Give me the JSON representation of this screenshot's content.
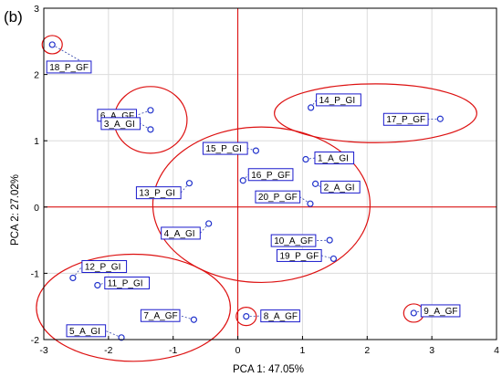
{
  "chart_data": {
    "type": "scatter",
    "panel_label": "(b)",
    "xlabel": "PCA 1: 47.05%",
    "ylabel": "PCA 2: 27.02%",
    "xlim": [
      -3,
      4
    ],
    "ylim": [
      -2,
      3
    ],
    "xticks": [
      -3,
      -2,
      -1,
      0,
      1,
      2,
      3,
      4
    ],
    "yticks": [
      -2,
      -1,
      0,
      1,
      2,
      3
    ],
    "grid": true,
    "reference_lines": {
      "x": 0,
      "y": 0,
      "color": "#dd0000"
    },
    "point_color": "#2233cc",
    "label_box_color": "#1a1acc",
    "ellipse_color": "#dd1111",
    "points": [
      {
        "label": "18_P_GF",
        "x": -2.87,
        "y": 2.45
      },
      {
        "label": "6_A_GF",
        "x": -1.35,
        "y": 1.46
      },
      {
        "label": "3_A_GI",
        "x": -1.35,
        "y": 1.17
      },
      {
        "label": "15_P_GI",
        "x": 0.28,
        "y": 0.85
      },
      {
        "label": "16_P_GF",
        "x": 0.08,
        "y": 0.4
      },
      {
        "label": "13_P_GI",
        "x": -0.75,
        "y": 0.36
      },
      {
        "label": "4_A_GI",
        "x": -0.45,
        "y": -0.25
      },
      {
        "label": "14_P_GI",
        "x": 1.13,
        "y": 1.5
      },
      {
        "label": "17_P_GF",
        "x": 3.13,
        "y": 1.33
      },
      {
        "label": "1_A_GI",
        "x": 1.05,
        "y": 0.72
      },
      {
        "label": "2_A_GI",
        "x": 1.2,
        "y": 0.35
      },
      {
        "label": "20_P_GF",
        "x": 1.12,
        "y": 0.05
      },
      {
        "label": "10_A_GF",
        "x": 1.42,
        "y": -0.5
      },
      {
        "label": "19_P_GF",
        "x": 1.48,
        "y": -0.78
      },
      {
        "label": "12_P_GI",
        "x": -2.55,
        "y": -1.07
      },
      {
        "label": "11_P_GI",
        "x": -2.17,
        "y": -1.18
      },
      {
        "label": "7_A_GF",
        "x": -0.68,
        "y": -1.7
      },
      {
        "label": "8_A_GF",
        "x": 0.13,
        "y": -1.65
      },
      {
        "label": "9_A_GF",
        "x": 2.72,
        "y": -1.6
      },
      {
        "label": "5_A_GI",
        "x": -1.8,
        "y": -1.97
      }
    ],
    "groups": [
      {
        "members": [
          "18_P_GF"
        ]
      },
      {
        "members": [
          "6_A_GF",
          "3_A_GI"
        ]
      },
      {
        "members": [
          "14_P_GI",
          "17_P_GF"
        ]
      },
      {
        "members": [
          "15_P_GI",
          "16_P_GF",
          "13_P_GI",
          "4_A_GI",
          "1_A_GI",
          "2_A_GI",
          "20_P_GF",
          "10_A_GF",
          "19_P_GF"
        ]
      },
      {
        "members": [
          "12_P_GI",
          "11_P_GI",
          "7_A_GF",
          "5_A_GI"
        ]
      },
      {
        "members": [
          "8_A_GF"
        ]
      },
      {
        "members": [
          "9_A_GF"
        ]
      }
    ]
  }
}
